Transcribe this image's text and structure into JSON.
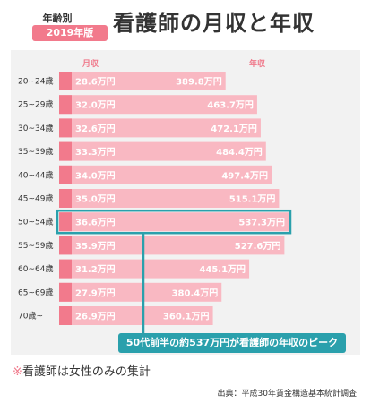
{
  "header": {
    "label": "年齢別",
    "badge": "2019年版",
    "title": "看護師の月収と年収"
  },
  "columns": {
    "monthly": "月収",
    "annual": "年収"
  },
  "colors": {
    "bar_light": "#f9b8c2",
    "bar_tab": "#f27a8c",
    "accent": "#2aa0ac",
    "panel": "#f2f2f2"
  },
  "chart_data": {
    "type": "bar",
    "orientation": "horizontal",
    "categories": [
      "20~24歳",
      "25~29歳",
      "30~34歳",
      "35~39歳",
      "40~44歳",
      "45~49歳",
      "50~54歳",
      "55~59歳",
      "60~64歳",
      "65~69歳",
      "70歳~"
    ],
    "series": [
      {
        "name": "月収",
        "values": [
          28.6,
          32.0,
          32.6,
          33.3,
          34.0,
          35.0,
          36.6,
          35.9,
          31.2,
          27.9,
          26.9
        ],
        "labels": [
          "28.6万円",
          "32.0万円",
          "32.6万円",
          "33.3万円",
          "34.0万円",
          "35.0万円",
          "36.6万円",
          "35.9万円",
          "31.2万円",
          "27.9万円",
          "26.9万円"
        ]
      },
      {
        "name": "年収",
        "values": [
          389.8,
          463.7,
          472.1,
          484.4,
          497.4,
          515.1,
          537.3,
          527.6,
          445.1,
          380.4,
          360.1
        ],
        "labels": [
          "389.8万円",
          "463.7万円",
          "472.1万円",
          "484.4万円",
          "497.4万円",
          "515.1万円",
          "537.3万円",
          "527.6万円",
          "445.1万円",
          "380.4万円",
          "360.1万円"
        ]
      }
    ],
    "highlight_category": "50~54歳",
    "annotation": "50代前半の約537万円が看護師の年収のピーク"
  },
  "footer": {
    "note_mark": "※",
    "note": "看護師は女性のみの集計",
    "source": "出典：平成30年賃金構造基本統計調査"
  }
}
